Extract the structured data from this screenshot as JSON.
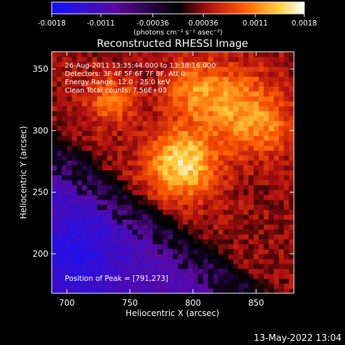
{
  "colorbar": {
    "ticks": [
      "-0.0018",
      "-0.0011",
      "-0.00036",
      "0.00036",
      "0.0011",
      "0.0018"
    ],
    "tick_values": [
      -0.0018,
      -0.0011,
      -0.00036,
      0.00036,
      0.0011,
      0.0018
    ],
    "range": [
      -0.0018,
      0.0018
    ],
    "units_label": "(photons cm⁻² s⁻¹ asec⁻²)",
    "colors": [
      "#1010ff",
      "#5a0aa0",
      "#000000",
      "#b01010",
      "#ff5a00",
      "#ffd040",
      "#ffffff"
    ]
  },
  "chart_data": {
    "type": "heatmap",
    "title": "Reconstructed RHESSI Image",
    "xlabel": "Heliocentric X (arcsec)",
    "ylabel": "Heliocentric Y (arcsec)",
    "xlim": [
      688,
      880
    ],
    "ylim": [
      168,
      364
    ],
    "xticks": [
      700,
      750,
      800,
      850
    ],
    "yticks": [
      200,
      250,
      300,
      350
    ],
    "annotations": [
      "26-Aug-2011 13:35:44.000 to 13:38:16.000",
      "Detectors: 3F 4F 5F 6F 7F 8F, Att 0",
      "Energy Range: 12.0 - 25.0 keV",
      "Clean     Total counts: 7.56E+03"
    ],
    "peak_label": "Position of Peak = [791,273]",
    "peak": [
      791,
      273
    ],
    "grid": false
  },
  "footer": {
    "timestamp": "13-May-2022 13:04"
  }
}
